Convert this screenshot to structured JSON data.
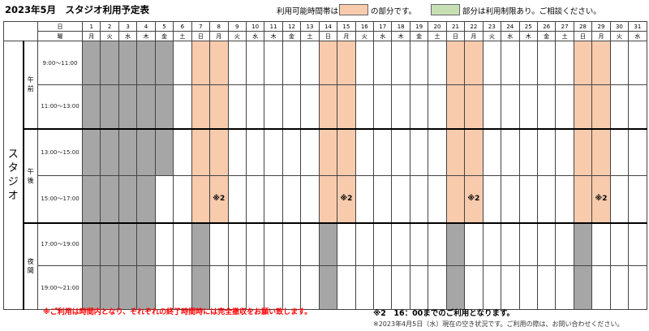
{
  "title": "2023年5月　スタジオ利用予定表",
  "legend": {
    "avail_prefix": "利用可能時間帯は",
    "avail_suffix": "の部分です。",
    "avail_color": "#f8cbad",
    "restricted_suffix": "部分は利用制限あり。ご相談ください。",
    "restricted_color": "#c6e0b4",
    "closed_color": "#a6a6a6"
  },
  "header": {
    "day_label": "日",
    "weekday_label": "曜"
  },
  "days": [
    {
      "d": "1",
      "w": "月",
      "s": [
        "c",
        "c",
        "c",
        "c"
      ]
    },
    {
      "d": "2",
      "w": "火",
      "s": [
        "c",
        "c",
        "c",
        "c"
      ]
    },
    {
      "d": "3",
      "w": "水",
      "s": [
        "c",
        "c",
        "c",
        "c"
      ]
    },
    {
      "d": "4",
      "w": "木",
      "s": [
        "c",
        "c",
        "c",
        "c"
      ]
    },
    {
      "d": "5",
      "w": "金",
      "s": [
        "c",
        "c",
        "n",
        "n"
      ]
    },
    {
      "d": "6",
      "w": "土",
      "s": [
        "n",
        "n",
        "n",
        "n"
      ]
    },
    {
      "d": "7",
      "w": "日",
      "s": [
        "a",
        "a",
        "a",
        "c"
      ]
    },
    {
      "d": "8",
      "w": "月",
      "s": [
        "a",
        "a",
        "a",
        "n"
      ],
      "note": "※2"
    },
    {
      "d": "9",
      "w": "火",
      "s": [
        "n",
        "n",
        "n",
        "n"
      ]
    },
    {
      "d": "10",
      "w": "水",
      "s": [
        "n",
        "n",
        "n",
        "n"
      ]
    },
    {
      "d": "11",
      "w": "木",
      "s": [
        "n",
        "n",
        "n",
        "n"
      ]
    },
    {
      "d": "12",
      "w": "金",
      "s": [
        "n",
        "n",
        "n",
        "n"
      ]
    },
    {
      "d": "13",
      "w": "土",
      "s": [
        "n",
        "n",
        "n",
        "n"
      ]
    },
    {
      "d": "14",
      "w": "日",
      "s": [
        "a",
        "a",
        "a",
        "c"
      ]
    },
    {
      "d": "15",
      "w": "月",
      "s": [
        "a",
        "a",
        "a",
        "n"
      ],
      "note": "※2"
    },
    {
      "d": "16",
      "w": "火",
      "s": [
        "n",
        "n",
        "n",
        "n"
      ]
    },
    {
      "d": "17",
      "w": "水",
      "s": [
        "n",
        "n",
        "n",
        "n"
      ]
    },
    {
      "d": "18",
      "w": "木",
      "s": [
        "n",
        "n",
        "n",
        "n"
      ]
    },
    {
      "d": "19",
      "w": "金",
      "s": [
        "n",
        "n",
        "n",
        "n"
      ]
    },
    {
      "d": "20",
      "w": "土",
      "s": [
        "n",
        "n",
        "n",
        "n"
      ]
    },
    {
      "d": "21",
      "w": "日",
      "s": [
        "a",
        "a",
        "a",
        "c"
      ]
    },
    {
      "d": "22",
      "w": "月",
      "s": [
        "a",
        "a",
        "a",
        "n"
      ],
      "note": "※2"
    },
    {
      "d": "23",
      "w": "火",
      "s": [
        "n",
        "n",
        "n",
        "n"
      ]
    },
    {
      "d": "24",
      "w": "水",
      "s": [
        "n",
        "n",
        "n",
        "n"
      ]
    },
    {
      "d": "25",
      "w": "木",
      "s": [
        "n",
        "n",
        "n",
        "n"
      ]
    },
    {
      "d": "26",
      "w": "金",
      "s": [
        "n",
        "n",
        "n",
        "n"
      ]
    },
    {
      "d": "27",
      "w": "土",
      "s": [
        "n",
        "n",
        "n",
        "n"
      ]
    },
    {
      "d": "28",
      "w": "日",
      "s": [
        "a",
        "a",
        "a",
        "c"
      ]
    },
    {
      "d": "29",
      "w": "月",
      "s": [
        "a",
        "a",
        "a",
        "n"
      ],
      "note": "※2"
    },
    {
      "d": "30",
      "w": "火",
      "s": [
        "n",
        "n",
        "n",
        "n"
      ]
    },
    {
      "d": "31",
      "w": "水",
      "s": [
        "n",
        "n",
        "n",
        "n"
      ]
    }
  ],
  "studio_label": "スタジオ",
  "periods": [
    {
      "label": "午\n前",
      "slots": [
        "9:00～11:00",
        "11:00～13:00"
      ]
    },
    {
      "label": "午\n後",
      "slots": [
        "13:00～15:00",
        "15:00～17:00"
      ]
    },
    {
      "label": "夜\n間",
      "slots": [
        "17:00～19:00",
        "19:00～21:00"
      ]
    }
  ],
  "notes": {
    "red": "※ご利用は時間内となり、それぞれの終了時間時には完全撤収をお願い致します。",
    "two": "※2　16：00までのご利用となります。",
    "status": "※2023年4月5日（水）現在の空き状況です。ご利用の際は、お問い合わせください。"
  }
}
